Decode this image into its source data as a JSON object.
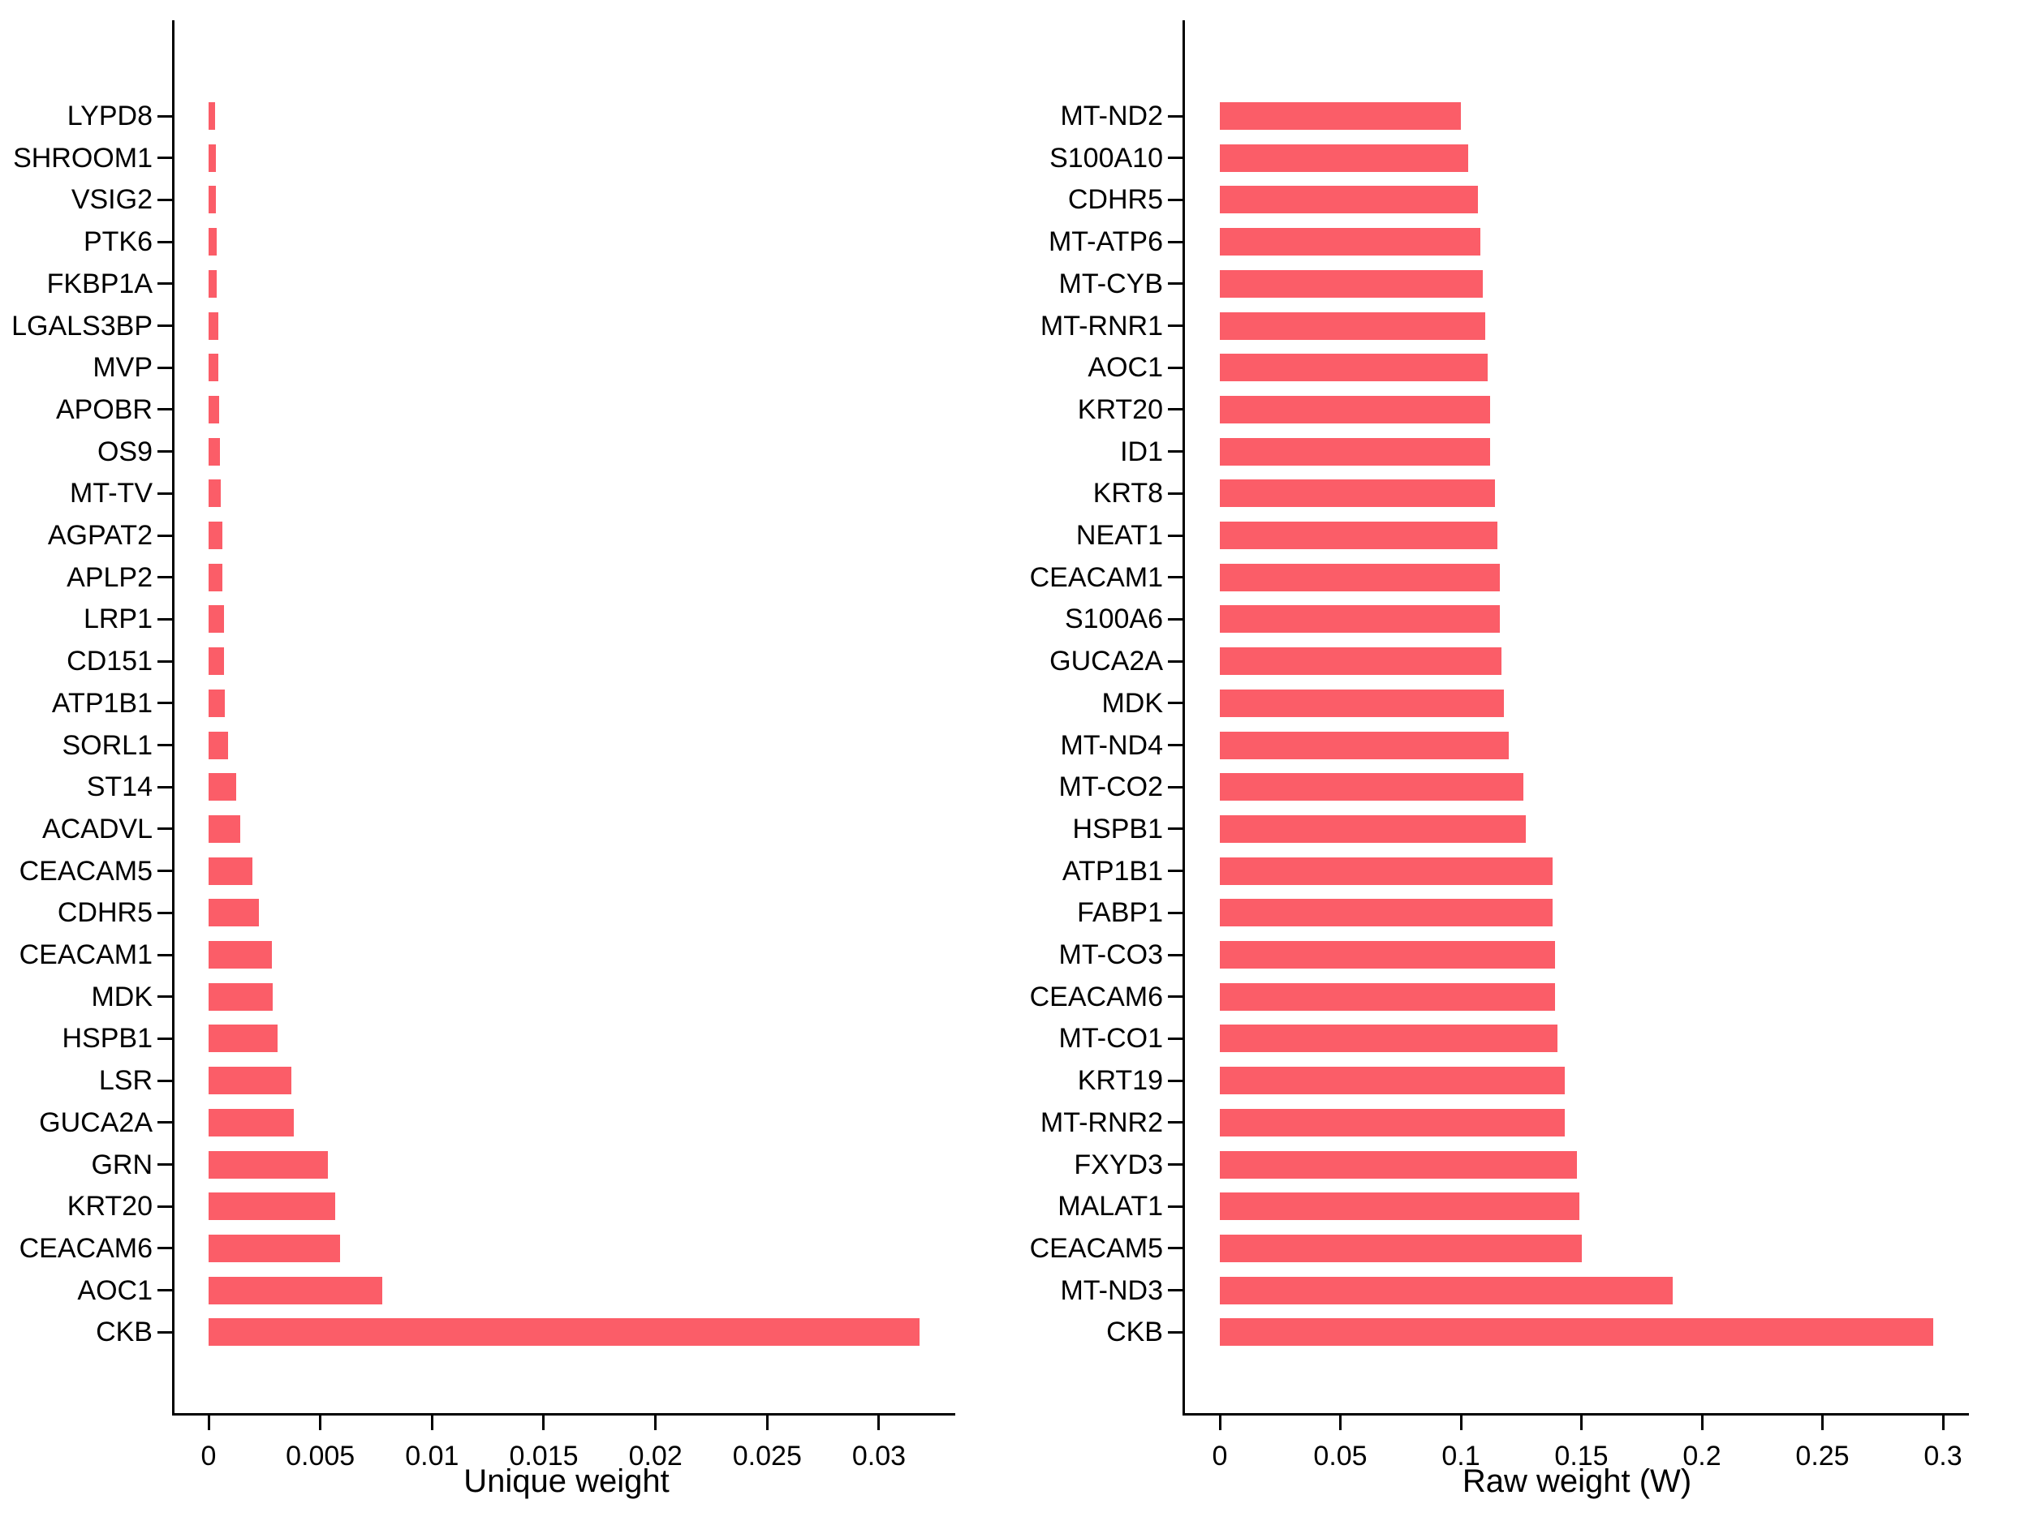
{
  "page": {
    "background": "#ffffff"
  },
  "colors": {
    "bar": "#fb5d68",
    "axis": "#000000",
    "text": "#000000"
  },
  "chart_data": [
    {
      "type": "bar",
      "orientation": "horizontal",
      "title": "",
      "xlabel": "Unique weight",
      "ylabel": "",
      "grid": false,
      "legend": null,
      "xlim": [
        0,
        0.0334
      ],
      "xticks": [
        0,
        0.005,
        0.01,
        0.015,
        0.02,
        0.025,
        0.03
      ],
      "xtick_labels": [
        "0",
        "0.005",
        "0.01",
        "0.015",
        "0.02",
        "0.025",
        "0.03"
      ],
      "categories_top_to_bottom": [
        "LYPD8",
        "SHROOM1",
        "VSIG2",
        "PTK6",
        "FKBP1A",
        "LGALS3BP",
        "MVP",
        "APOBR",
        "OS9",
        "MT-TV",
        "AGPAT2",
        "APLP2",
        "LRP1",
        "CD151",
        "ATP1B1",
        "SORL1",
        "ST14",
        "ACADVL",
        "CEACAM5",
        "CDHR5",
        "CEACAM1",
        "MDK",
        "HSPB1",
        "LSR",
        "GUCA2A",
        "GRN",
        "KRT20",
        "CEACAM6",
        "AOC1",
        "CKB"
      ],
      "values": [
        0.00029,
        0.00032,
        0.00034,
        0.00035,
        0.00037,
        0.00042,
        0.00042,
        0.00048,
        0.00051,
        0.00056,
        0.00062,
        0.00062,
        0.00068,
        0.00068,
        0.00074,
        0.00087,
        0.00122,
        0.00142,
        0.00196,
        0.00225,
        0.00283,
        0.00287,
        0.00309,
        0.00369,
        0.0038,
        0.00534,
        0.00567,
        0.0059,
        0.00776,
        0.0318
      ]
    },
    {
      "type": "bar",
      "orientation": "horizontal",
      "title": "",
      "xlabel": "Raw weight (W)",
      "ylabel": "",
      "grid": false,
      "legend": null,
      "xlim": [
        0,
        0.311
      ],
      "xticks": [
        0,
        0.05,
        0.1,
        0.15,
        0.2,
        0.25,
        0.3
      ],
      "xtick_labels": [
        "0",
        "0.05",
        "0.1",
        "0.15",
        "0.2",
        "0.25",
        "0.3"
      ],
      "categories_top_to_bottom": [
        "MT-ND2",
        "S100A10",
        "CDHR5",
        "MT-ATP6",
        "MT-CYB",
        "MT-RNR1",
        "AOC1",
        "KRT20",
        "ID1",
        "KRT8",
        "NEAT1",
        "CEACAM1",
        "S100A6",
        "GUCA2A",
        "MDK",
        "MT-ND4",
        "MT-CO2",
        "HSPB1",
        "ATP1B1",
        "FABP1",
        "MT-CO3",
        "CEACAM6",
        "MT-CO1",
        "KRT19",
        "MT-RNR2",
        "FXYD3",
        "MALAT1",
        "CEACAM5",
        "MT-ND3",
        "CKB"
      ],
      "values": [
        0.1,
        0.103,
        0.107,
        0.108,
        0.109,
        0.11,
        0.111,
        0.112,
        0.112,
        0.114,
        0.115,
        0.116,
        0.116,
        0.117,
        0.118,
        0.12,
        0.126,
        0.127,
        0.138,
        0.138,
        0.139,
        0.139,
        0.14,
        0.143,
        0.143,
        0.148,
        0.149,
        0.15,
        0.188,
        0.296
      ]
    }
  ]
}
